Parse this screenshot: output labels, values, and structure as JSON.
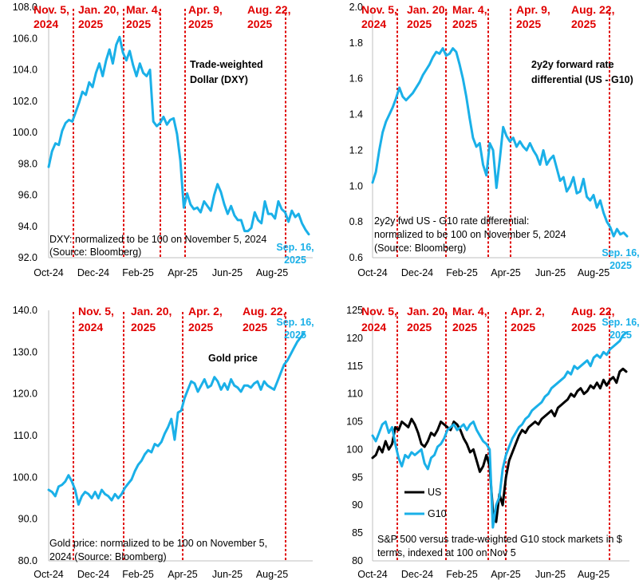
{
  "colors": {
    "blue": "#1ab0e8",
    "black": "#000000",
    "red": "#e00000",
    "axis": "#bfbfbf"
  },
  "chart_data": [
    {
      "type": "line",
      "id": "dxy",
      "title_lines": [
        "Trade-weighted",
        "Dollar (DXY)"
      ],
      "note_lines": [
        "DXY: normalized to be 100 on November 5, 2024",
        "(Source: Bloomberg)"
      ],
      "y_ticks": [
        "108.0",
        "106.0",
        "104.0",
        "102.0",
        "100.0",
        "98.0",
        "96.0",
        "94.0",
        "92.0"
      ],
      "ylim": [
        92,
        108
      ],
      "x_ticks": [
        "Oct-24",
        "Dec-24",
        "Feb-25",
        "Apr-25",
        "Jun-25",
        "Aug-25"
      ],
      "events": [
        {
          "lines": [
            "Nov. 5,",
            "2024"
          ]
        },
        {
          "lines": [
            "Jan. 20,",
            "2025"
          ]
        },
        {
          "lines": [
            "Mar. 4,",
            "2025"
          ]
        },
        {
          "lines": [
            "Apr. 9,",
            "2025"
          ]
        },
        {
          "lines": [
            "Aug. 22,",
            "2025"
          ]
        }
      ],
      "end_label": [
        "Sep. 16,",
        "2025"
      ],
      "series": [
        {
          "name": "DXY",
          "color": "#1ab0e8",
          "values": [
            97.8,
            98.8,
            99.3,
            99.2,
            100.1,
            100.6,
            100.8,
            100.7,
            101.3,
            101.9,
            102.6,
            102.4,
            103.2,
            102.9,
            103.8,
            104.4,
            103.6,
            104.6,
            105.3,
            104.4,
            105.6,
            106.1,
            105.1,
            104.6,
            105.2,
            104.3,
            103.6,
            104.4,
            103.8,
            103.6,
            104.0,
            100.7,
            100.4,
            100.6,
            101.0,
            100.5,
            100.8,
            100.9,
            99.9,
            98.2,
            95.2,
            96.1,
            95.4,
            95.1,
            95.2,
            94.9,
            95.6,
            95.3,
            95.0,
            96.0,
            96.7,
            96.2,
            95.4,
            94.8,
            95.3,
            94.7,
            94.4,
            94.4,
            93.7,
            93.7,
            93.9,
            94.9,
            94.4,
            94.2,
            95.6,
            94.8,
            94.8,
            94.5,
            95.6,
            95.1,
            94.9,
            94.3,
            95.0,
            94.6,
            94.8,
            94.2,
            93.8,
            93.5
          ]
        }
      ]
    },
    {
      "type": "line",
      "id": "rate-diff",
      "title_lines": [
        "2y2y forward rate",
        "differential (US - G10)"
      ],
      "note_lines": [
        "2y2y fwd US - G10 rate differential:",
        "normalized to be 100 on November 5, 2024",
        "(Source: Bloomberg)"
      ],
      "y_ticks": [
        "2.0",
        "1.8",
        "1.6",
        "1.4",
        "1.2",
        "1.0",
        "0.8",
        "0.6"
      ],
      "ylim": [
        0.6,
        2.0
      ],
      "x_ticks": [
        "Oct-24",
        "Dec-24",
        "Feb-25",
        "Apr-25",
        "Jun-25",
        "Aug-25"
      ],
      "events": [
        {
          "lines": [
            "Nov. 5,",
            "2024"
          ]
        },
        {
          "lines": [
            "Jan. 20,",
            "2025"
          ]
        },
        {
          "lines": [
            "Mar. 4,",
            "2025"
          ]
        },
        {
          "lines": [
            "Apr. 9,",
            "2025"
          ]
        },
        {
          "lines": [
            "Aug. 22,",
            "2025"
          ]
        }
      ],
      "end_label": [
        "Sep. 16,",
        "2025"
      ],
      "series": [
        {
          "name": "Rate differential",
          "color": "#1ab0e8",
          "values": [
            1.02,
            1.08,
            1.2,
            1.3,
            1.36,
            1.4,
            1.44,
            1.49,
            1.55,
            1.5,
            1.48,
            1.5,
            1.52,
            1.55,
            1.58,
            1.62,
            1.65,
            1.68,
            1.72,
            1.75,
            1.74,
            1.77,
            1.73,
            1.74,
            1.77,
            1.75,
            1.68,
            1.6,
            1.5,
            1.38,
            1.27,
            1.22,
            1.24,
            1.12,
            1.06,
            1.24,
            1.2,
            0.99,
            1.15,
            1.33,
            1.28,
            1.25,
            1.27,
            1.22,
            1.25,
            1.22,
            1.2,
            1.24,
            1.2,
            1.17,
            1.12,
            1.2,
            1.12,
            1.15,
            1.17,
            1.1,
            1.03,
            1.05,
            0.97,
            1.0,
            1.05,
            0.96,
            0.97,
            1.04,
            0.94,
            0.92,
            0.95,
            0.88,
            0.92,
            0.85,
            0.8,
            0.77,
            0.72,
            0.76,
            0.73,
            0.74,
            0.72
          ]
        }
      ]
    },
    {
      "type": "line",
      "id": "gold",
      "title_lines": [
        "Gold price"
      ],
      "note_lines": [
        "Gold price: normalized to be 100 on November 5,",
        "2024 (Source: Bloomberg)"
      ],
      "y_ticks": [
        "140.0",
        "130.0",
        "120.0",
        "110.0",
        "100.0",
        "90.0",
        "80.0"
      ],
      "ylim": [
        80,
        140
      ],
      "x_ticks": [
        "Oct-24",
        "Dec-24",
        "Feb-25",
        "Apr-25",
        "Jun-25",
        "Aug-25"
      ],
      "events": [
        {
          "lines": [
            "Nov. 5,",
            "2024"
          ]
        },
        {
          "lines": [
            "Jan. 20,",
            "2025"
          ]
        },
        {
          "lines": [
            "Apr. 2,",
            "2025"
          ]
        },
        {
          "lines": [
            "Aug. 22,",
            "2025"
          ]
        }
      ],
      "end_label": [
        "Sep. 16,",
        "2025"
      ],
      "series": [
        {
          "name": "Gold",
          "color": "#1ab0e8",
          "values": [
            97.0,
            96.5,
            95.5,
            97.8,
            98.2,
            99.0,
            100.5,
            99.0,
            97.0,
            93.5,
            95.5,
            96.5,
            96.0,
            95.0,
            96.5,
            95.0,
            97.0,
            96.0,
            95.5,
            94.5,
            96.0,
            95.0,
            96.0,
            97.5,
            98.5,
            99.5,
            101.5,
            103.0,
            104.0,
            105.5,
            106.5,
            106.0,
            108.0,
            107.5,
            108.5,
            110.5,
            112.0,
            114.0,
            109.0,
            115.5,
            116.0,
            119.0,
            121.0,
            123.0,
            122.5,
            120.5,
            122.0,
            123.5,
            121.5,
            122.0,
            124.0,
            123.0,
            121.0,
            122.5,
            121.0,
            123.5,
            122.0,
            121.5,
            120.5,
            122.0,
            122.0,
            121.5,
            122.5,
            123.0,
            121.0,
            123.0,
            122.0,
            121.5,
            121.0,
            123.0,
            125.0,
            127.0,
            128.0,
            129.5,
            131.0,
            132.5,
            133.5,
            134.5
          ]
        }
      ]
    },
    {
      "type": "line",
      "id": "stocks",
      "title_lines": [],
      "note_lines": [
        "S&P 500 versus trade-weighted G10 stock markets in $",
        "terms, indexed at 100 on Nov 5"
      ],
      "y_ticks": [
        "125",
        "120",
        "115",
        "110",
        "105",
        "100",
        "95",
        "90",
        "85",
        "80"
      ],
      "ylim": [
        80,
        125
      ],
      "x_ticks": [
        "Oct-24",
        "Dec-24",
        "Feb-25",
        "Apr-25",
        "Jun-25",
        "Aug-25"
      ],
      "events": [
        {
          "lines": [
            "Nov. 5,",
            "2024"
          ]
        },
        {
          "lines": [
            "Jan. 20,",
            "2025"
          ]
        },
        {
          "lines": [
            "Mar. 4,",
            "2025"
          ]
        },
        {
          "lines": [
            "Apr. 2,",
            "2025"
          ]
        },
        {
          "lines": [
            "Aug. 22,",
            "2025"
          ]
        }
      ],
      "end_label": [
        "Sep. 16,",
        "2025"
      ],
      "legend": [
        "US",
        "G10"
      ],
      "series": [
        {
          "name": "US",
          "color": "#000000",
          "values": [
            98.5,
            99.0,
            100.5,
            99.5,
            101.5,
            100.0,
            101.0,
            104.0,
            103.5,
            105.0,
            104.5,
            104.0,
            105.5,
            104.5,
            103.0,
            101.0,
            100.5,
            101.5,
            103.0,
            102.5,
            103.5,
            105.0,
            104.5,
            104.0,
            103.5,
            105.0,
            104.5,
            103.5,
            102.0,
            101.0,
            99.5,
            100.0,
            98.0,
            96.0,
            97.0,
            99.0,
            97.0,
            89.0,
            87.0,
            92.0,
            90.0,
            95.0,
            98.0,
            99.5,
            101.0,
            102.5,
            103.5,
            103.0,
            104.0,
            104.5,
            105.0,
            104.5,
            105.5,
            106.0,
            106.5,
            107.0,
            106.0,
            107.5,
            108.0,
            108.5,
            109.0,
            110.0,
            109.5,
            110.5,
            111.0,
            110.0,
            110.5,
            111.5,
            111.0,
            112.0,
            111.0,
            112.5,
            111.5,
            112.5,
            113.0,
            112.0,
            114.0,
            114.5,
            114.0
          ]
        },
        {
          "name": "G10",
          "color": "#1ab0e8",
          "values": [
            102.5,
            101.5,
            103.0,
            104.5,
            105.0,
            103.0,
            104.0,
            101.0,
            98.5,
            97.0,
            99.0,
            98.5,
            99.5,
            99.0,
            99.5,
            100.0,
            97.5,
            96.5,
            98.5,
            99.0,
            100.5,
            101.0,
            102.0,
            103.5,
            104.0,
            104.5,
            103.5,
            104.0,
            104.5,
            103.5,
            104.5,
            105.0,
            103.5,
            102.5,
            101.5,
            101.0,
            100.0,
            86.0,
            90.0,
            91.5,
            96.5,
            99.0,
            100.5,
            102.0,
            103.0,
            104.0,
            104.5,
            105.5,
            106.0,
            107.0,
            107.5,
            108.0,
            108.5,
            109.5,
            110.0,
            111.0,
            111.5,
            112.0,
            112.5,
            113.0,
            114.0,
            113.5,
            115.0,
            114.5,
            115.0,
            115.5,
            116.0,
            115.0,
            116.5,
            117.0,
            116.5,
            117.5,
            117.0,
            118.0,
            118.5,
            119.0,
            119.5,
            120.5,
            121.0
          ]
        }
      ]
    }
  ]
}
